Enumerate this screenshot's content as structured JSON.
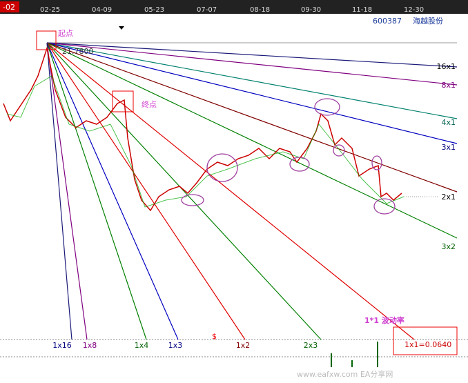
{
  "toolbar": {
    "period": "-02",
    "dates": [
      "02-25",
      "04-09",
      "05-23",
      "07-07",
      "08-18",
      "09-30",
      "11-18",
      "12-30"
    ]
  },
  "stock": {
    "code": "600387",
    "name": "海越股份"
  },
  "annotations": {
    "start": "起点",
    "start_price": "21.7800",
    "end": "终点",
    "rate": "1*1 波动率",
    "dollar": "$"
  },
  "fan_right": [
    "16x1",
    "8x1",
    "4x1",
    "3x1",
    "2x1",
    "3x2"
  ],
  "fan_bottom": [
    "1x16",
    "1x8",
    "1x4",
    "1x3",
    "1x2",
    "2x3"
  ],
  "ratio": "1x1=0.0640",
  "watermark": "www.eafxw.com EA分享网"
}
